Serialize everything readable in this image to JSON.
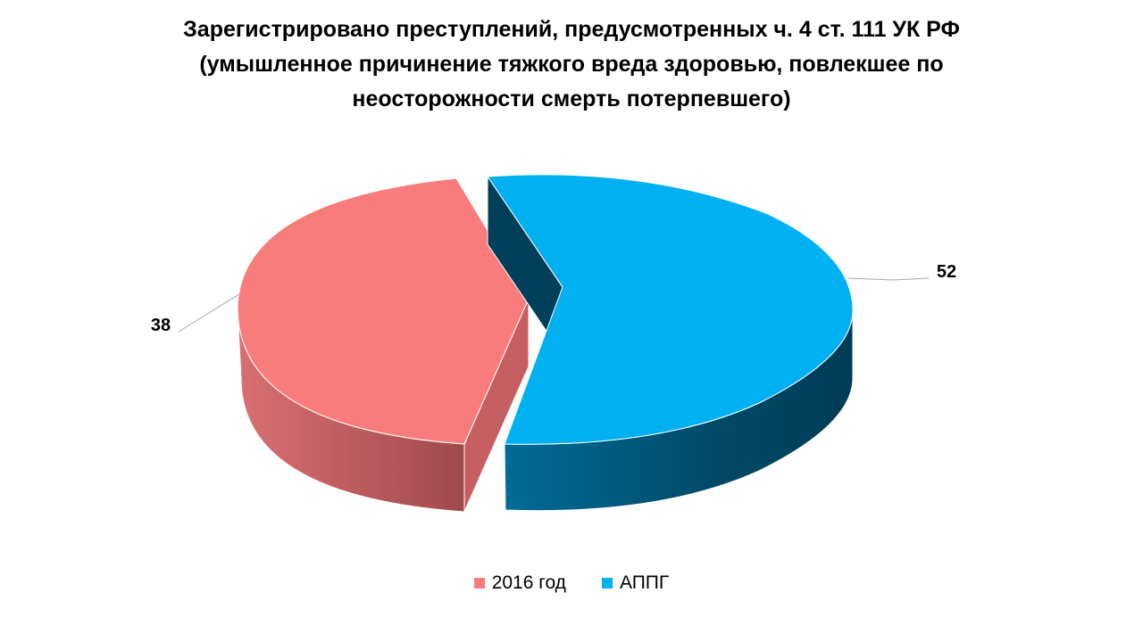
{
  "chart_data": {
    "type": "pie",
    "title_lines": [
      "Зарегистрировано преступлений, предусмотренных ч. 4 ст. 111 УК РФ",
      "(умышленное причинение тяжкого вреда здоровью, повлекшее по",
      "неосторожности смерть потерпевшего)"
    ],
    "categories": [
      "2016 год",
      "АППГ"
    ],
    "values": [
      38,
      52
    ],
    "data_labels": [
      "38",
      "52"
    ],
    "colors": [
      "#F87C7C",
      "#00B0F0"
    ],
    "side_colors": [
      "#C65F62",
      "#004A68"
    ],
    "legend_position": "bottom",
    "exploded": true,
    "three_d": true
  }
}
